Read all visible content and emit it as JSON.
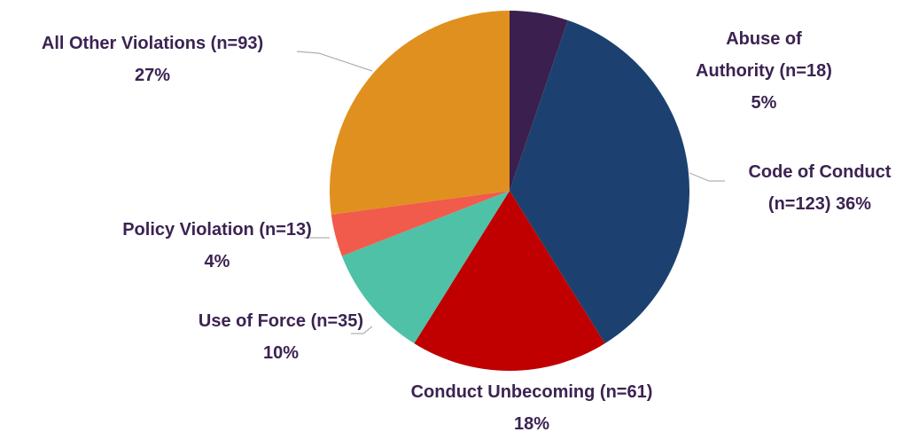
{
  "chart_data": {
    "type": "pie",
    "categories": [
      "Abuse of Authority",
      "Code of Conduct",
      "Conduct Unbecoming",
      "Use of Force",
      "Policy Violation",
      "All Other Violations"
    ],
    "values": [
      18,
      123,
      61,
      35,
      13,
      93
    ],
    "value_labels": [
      "(n=18)",
      "(n=123)",
      "(n=61)",
      "(n=35)",
      "(n=13)",
      "(n=93)"
    ],
    "percentages": [
      5,
      36,
      18,
      10,
      4,
      27
    ],
    "percentage_labels": [
      "5%",
      "36%",
      "18%",
      "10%",
      "4%",
      "27%"
    ],
    "colors": [
      "#3b1f4e",
      "#1c4170",
      "#c00000",
      "#4fc1a6",
      "#f15b4b",
      "#e0901e"
    ]
  }
}
